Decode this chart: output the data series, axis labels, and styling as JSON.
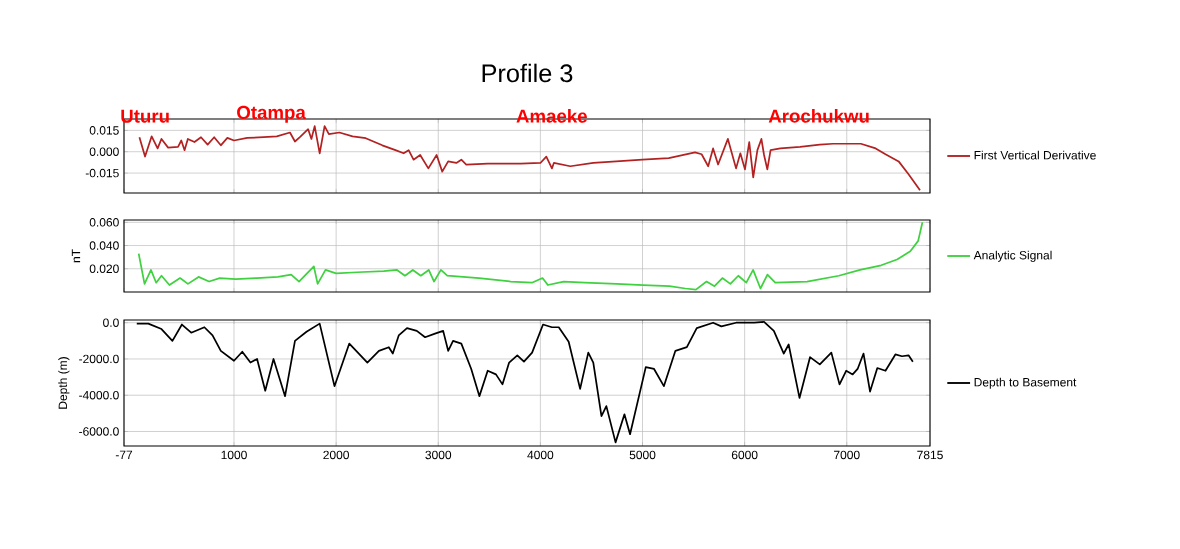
{
  "chart_data": [
    {
      "type": "line",
      "title": "Profile 3",
      "annotations": [
        "Uturu",
        "Otampa",
        "Amaeke",
        "Arochukwu"
      ],
      "x": [
        74,
        129,
        194,
        252,
        290,
        355,
        452,
        484,
        516,
        548,
        613,
        677,
        742,
        806,
        871,
        935,
        1000,
        1129,
        1290,
        1419,
        1548,
        1597,
        1645,
        1726,
        1758,
        1790,
        1839,
        1887,
        1929,
        2032,
        2161,
        2290,
        2452,
        2581,
        2661,
        2710,
        2758,
        2823,
        2903,
        2984,
        3039,
        3097,
        3177,
        3226,
        3274,
        3484,
        3806,
        4000,
        4058,
        4113,
        4132,
        4293,
        4518,
        4743,
        5000,
        5257,
        5514,
        5579,
        5643,
        5691,
        5740,
        5836,
        5916,
        5958,
        6003,
        6045,
        6084,
        6125,
        6164,
        6190,
        6222,
        6254,
        6350,
        6543,
        6736,
        6865,
        6994,
        7138,
        7283,
        7379,
        7508,
        7605,
        7717
      ],
      "series": [
        {
          "name": "First Vertical Derivative",
          "color": "#b22222",
          "values": [
            0.0102,
            -0.0034,
            0.0108,
            0.0023,
            0.009,
            0.0029,
            0.0034,
            0.0079,
            0.0011,
            0.009,
            0.0068,
            0.0102,
            0.005,
            0.0102,
            0.0045,
            0.0097,
            0.0079,
            0.0097,
            0.0102,
            0.0108,
            0.0135,
            0.0072,
            0.0102,
            0.0158,
            0.009,
            0.018,
            -0.0011,
            0.018,
            0.0124,
            0.0135,
            0.0108,
            0.0095,
            0.0045,
            0.0011,
            -0.0011,
            0.0011,
            -0.0056,
            -0.0023,
            -0.0117,
            -0.0023,
            -0.014,
            -0.0068,
            -0.0079,
            -0.0056,
            -0.009,
            -0.0083,
            -0.0083,
            -0.0079,
            -0.0034,
            -0.0117,
            -0.0079,
            -0.0102,
            -0.0079,
            -0.0068,
            -0.0056,
            -0.0045,
            -0.0005,
            -0.0018,
            -0.0102,
            0.0023,
            -0.009,
            0.009,
            -0.0117,
            -0.0011,
            -0.0124,
            0.0068,
            -0.018,
            0.0011,
            0.009,
            -0.0023,
            -0.0124,
            0.0011,
            0.0023,
            0.0034,
            0.005,
            0.0056,
            0.0056,
            0.0056,
            0.0023,
            -0.0018,
            -0.0068,
            -0.0158,
            -0.0271
          ]
        }
      ],
      "xlim": [
        -77,
        7815
      ],
      "xticks": [
        -77,
        1000,
        2000,
        3000,
        4000,
        5000,
        6000,
        7000,
        7815
      ],
      "ylim": [
        -0.029,
        0.023
      ],
      "yticks": [
        -0.015,
        {
          "value": 0,
          "label": "0.000"
        },
        0.015
      ],
      "grid": true,
      "legend": "right",
      "tick_labels": "y"
    },
    {
      "type": "line",
      "ylabel": "nT",
      "x": [
        67,
        124,
        187,
        238,
        290,
        368,
        472,
        549,
        653,
        756,
        860,
        1016,
        1223,
        1430,
        1560,
        1637,
        1715,
        1782,
        1819,
        1896,
        2000,
        2207,
        2466,
        2596,
        2674,
        2751,
        2829,
        2907,
        2959,
        3026,
        3088,
        3399,
        3710,
        3917,
        4021,
        4073,
        4228,
        4435,
        4746,
        5005,
        5264,
        5420,
        5523,
        5627,
        5705,
        5782,
        5860,
        5938,
        6016,
        6083,
        6155,
        6223,
        6300,
        6611,
        6922,
        7130,
        7337,
        7492,
        7622,
        7699,
        7741
      ],
      "series": [
        {
          "name": "Analytic Signal",
          "color": "#3fd13f",
          "values": [
            0.033,
            0.007,
            0.019,
            0.008,
            0.014,
            0.006,
            0.012,
            0.007,
            0.013,
            0.009,
            0.012,
            0.011,
            0.012,
            0.013,
            0.015,
            0.009,
            0.016,
            0.022,
            0.007,
            0.019,
            0.016,
            0.017,
            0.018,
            0.019,
            0.014,
            0.019,
            0.014,
            0.019,
            0.009,
            0.019,
            0.014,
            0.012,
            0.009,
            0.008,
            0.012,
            0.006,
            0.009,
            0.008,
            0.007,
            0.006,
            0.005,
            0.003,
            0.002,
            0.009,
            0.005,
            0.012,
            0.007,
            0.014,
            0.008,
            0.019,
            0.003,
            0.015,
            0.008,
            0.009,
            0.014,
            0.019,
            0.023,
            0.028,
            0.035,
            0.044,
            0.06
          ]
        }
      ],
      "xlim": [
        -77,
        7815
      ],
      "xticks": [
        -77,
        1000,
        2000,
        3000,
        4000,
        5000,
        6000,
        7000,
        7815
      ],
      "ylim": [
        0,
        0.062
      ],
      "yticks": [
        {
          "value": 0.02,
          "label": "0.020"
        },
        {
          "value": 0.04,
          "label": "0.040"
        },
        {
          "value": 0.06,
          "label": "0.060"
        }
      ],
      "grid": true,
      "legend": "right",
      "tick_labels": "y"
    },
    {
      "type": "line",
      "ylabel": "Depth (m)",
      "x": [
        48,
        161,
        290,
        397,
        490,
        581,
        710,
        790,
        871,
        1000,
        1081,
        1161,
        1226,
        1306,
        1387,
        1500,
        1597,
        1710,
        1839,
        1984,
        2129,
        2306,
        2419,
        2516,
        2555,
        2613,
        2694,
        2790,
        2871,
        2968,
        3048,
        3097,
        3145,
        3226,
        3323,
        3403,
        3484,
        3565,
        3629,
        3694,
        3774,
        3839,
        3919,
        4026,
        4113,
        4180,
        4277,
        4389,
        4469,
        4518,
        4598,
        4646,
        4736,
        4823,
        4878,
        5032,
        5113,
        5209,
        5322,
        5434,
        5531,
        5691,
        5772,
        5916,
        6093,
        6190,
        6286,
        6383,
        6431,
        6537,
        6640,
        6736,
        6849,
        6929,
        6994,
        7058,
        7106,
        7164,
        7228,
        7299,
        7379,
        7476,
        7540,
        7605,
        7647
      ],
      "series": [
        {
          "name": "Depth to Basement",
          "color": "#000000",
          "values": [
            -50,
            -50,
            -350,
            -1000,
            -100,
            -550,
            -250,
            -700,
            -1550,
            -2100,
            -1600,
            -2200,
            -2000,
            -3750,
            -2000,
            -4050,
            -1000,
            -500,
            -50,
            -3500,
            -1150,
            -2200,
            -1550,
            -1350,
            -1700,
            -700,
            -300,
            -450,
            -800,
            -600,
            -450,
            -1550,
            -1000,
            -1150,
            -2550,
            -4050,
            -2650,
            -2850,
            -3400,
            -2200,
            -1800,
            -2150,
            -1650,
            -100,
            -250,
            -250,
            -1050,
            -3650,
            -1650,
            -2200,
            -5150,
            -4600,
            -6600,
            -5050,
            -6150,
            -2450,
            -2550,
            -3500,
            -1550,
            -1350,
            -300,
            0,
            -200,
            0,
            0,
            50,
            -450,
            -1700,
            -1200,
            -4150,
            -1900,
            -2300,
            -1650,
            -3400,
            -2650,
            -2850,
            -2550,
            -1700,
            -3800,
            -2500,
            -2650,
            -1750,
            -1850,
            -1800,
            -2150
          ]
        }
      ],
      "xlim": [
        -77,
        7815
      ],
      "xticks": [
        -77,
        1000,
        2000,
        3000,
        4000,
        5000,
        6000,
        7000,
        7815
      ],
      "ylim": [
        -6800,
        150
      ],
      "yticks": [
        {
          "value": -6000,
          "label": "-6000.0"
        },
        {
          "value": -4000,
          "label": "-4000.0"
        },
        {
          "value": -2000,
          "label": "-2000.0"
        },
        {
          "value": 0,
          "label": "0.0"
        }
      ],
      "grid": true,
      "legend": "right"
    }
  ]
}
